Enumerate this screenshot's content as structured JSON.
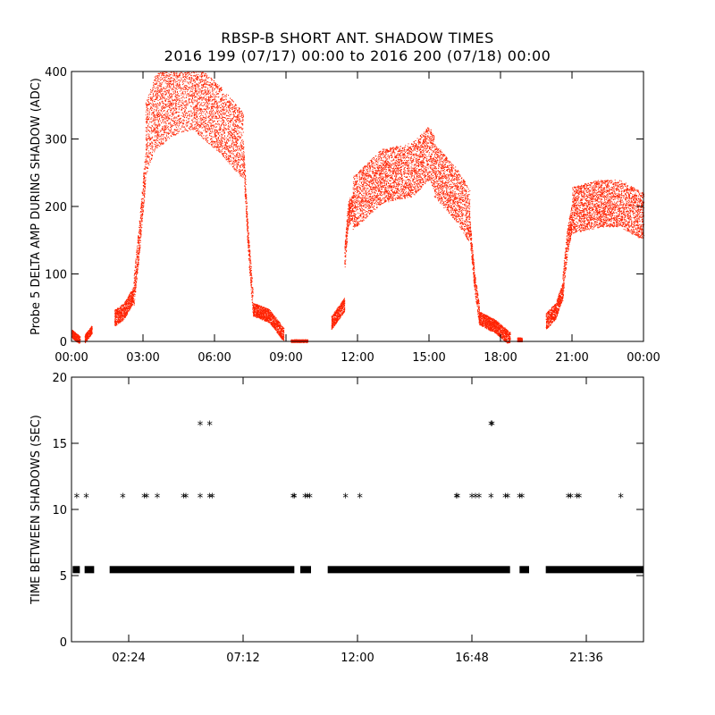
{
  "figure": {
    "title_line1": "RBSP-B SHORT ANT. SHADOW TIMES",
    "title_line2": "2016 199 (07/17) 00:00 to 2016 200 (07/18) 00:00"
  },
  "colors": {
    "top_points": "#ff2200",
    "bottom_points": "#000000",
    "axes": "#000000"
  },
  "chart_data": [
    {
      "type": "scatter",
      "ylabel": "Probe 5 DELTA AMP DURING SHADOW (ADC)",
      "xlim": [
        0,
        24
      ],
      "ylim": [
        0,
        400
      ],
      "x_units": "hours since 2016-07-17 00:00",
      "x_ticks": [
        0,
        3,
        6,
        9,
        12,
        15,
        18,
        21,
        24
      ],
      "x_tick_labels": [
        "00:00",
        "03:00",
        "06:00",
        "09:00",
        "12:00",
        "15:00",
        "18:00",
        "21:00",
        "00:00"
      ],
      "y_ticks": [
        0,
        100,
        200,
        300,
        400
      ],
      "y_tick_labels": [
        "0",
        "100",
        "200",
        "300",
        "400"
      ],
      "segments": [
        {
          "x0": 0.0,
          "x1": 0.35,
          "profile": [
            [
              0.0,
              12
            ],
            [
              0.2,
              6
            ],
            [
              0.35,
              2
            ]
          ],
          "spread": 6
        },
        {
          "x0": 0.55,
          "x1": 0.85,
          "profile": [
            [
              0.55,
              4
            ],
            [
              0.85,
              18
            ]
          ],
          "spread": 6
        },
        {
          "x0": 1.8,
          "x1": 2.6,
          "profile": [
            [
              1.8,
              35
            ],
            [
              2.2,
              45
            ],
            [
              2.6,
              70
            ]
          ],
          "spread": 12
        },
        {
          "x0": 2.6,
          "x1": 3.1,
          "profile": [
            [
              2.6,
              70
            ],
            [
              2.8,
              140
            ],
            [
              3.1,
              260
            ]
          ],
          "spread": 25
        },
        {
          "x0": 3.1,
          "x1": 5.2,
          "profile": [
            [
              3.1,
              300
            ],
            [
              3.5,
              340
            ],
            [
              4.5,
              365
            ],
            [
              5.2,
              370
            ]
          ],
          "spread": 55
        },
        {
          "x0": 5.2,
          "x1": 7.2,
          "profile": [
            [
              5.2,
              360
            ],
            [
              6.2,
              330
            ],
            [
              7.2,
              290
            ]
          ],
          "spread": 50
        },
        {
          "x0": 7.2,
          "x1": 7.6,
          "profile": [
            [
              7.2,
              280
            ],
            [
              7.4,
              150
            ],
            [
              7.6,
              60
            ]
          ],
          "spread": 20
        },
        {
          "x0": 7.6,
          "x1": 8.9,
          "profile": [
            [
              7.6,
              48
            ],
            [
              8.3,
              38
            ],
            [
              8.9,
              10
            ]
          ],
          "spread": 10
        },
        {
          "x0": 9.2,
          "x1": 9.9,
          "profile": [
            [
              9.2,
              1
            ],
            [
              9.9,
              1
            ]
          ],
          "spread": 2
        },
        {
          "x0": 10.9,
          "x1": 11.45,
          "profile": [
            [
              10.9,
              28
            ],
            [
              11.45,
              55
            ]
          ],
          "spread": 10
        },
        {
          "x0": 11.45,
          "x1": 11.8,
          "profile": [
            [
              11.45,
              120
            ],
            [
              11.6,
              190
            ],
            [
              11.8,
              200
            ]
          ],
          "spread": 20
        },
        {
          "x0": 11.8,
          "x1": 15.2,
          "profile": [
            [
              11.8,
              205
            ],
            [
              13.0,
              245
            ],
            [
              14.3,
              255
            ],
            [
              15.0,
              280
            ],
            [
              15.2,
              265
            ]
          ],
          "spread": 40
        },
        {
          "x0": 15.2,
          "x1": 16.7,
          "profile": [
            [
              15.2,
              255
            ],
            [
              16.2,
              215
            ],
            [
              16.7,
              185
            ]
          ],
          "spread": 40
        },
        {
          "x0": 16.7,
          "x1": 17.1,
          "profile": [
            [
              16.7,
              170
            ],
            [
              16.9,
              90
            ],
            [
              17.1,
              40
            ]
          ],
          "spread": 15
        },
        {
          "x0": 17.1,
          "x1": 18.4,
          "profile": [
            [
              17.1,
              35
            ],
            [
              17.8,
              22
            ],
            [
              18.4,
              4
            ]
          ],
          "spread": 10
        },
        {
          "x0": 18.7,
          "x1": 18.9,
          "profile": [
            [
              18.7,
              3
            ],
            [
              18.9,
              3
            ]
          ],
          "spread": 3
        },
        {
          "x0": 19.9,
          "x1": 20.6,
          "profile": [
            [
              19.9,
              30
            ],
            [
              20.3,
              45
            ],
            [
              20.6,
              75
            ]
          ],
          "spread": 12
        },
        {
          "x0": 20.6,
          "x1": 21.0,
          "profile": [
            [
              20.6,
              80
            ],
            [
              20.8,
              150
            ],
            [
              21.0,
              185
            ]
          ],
          "spread": 20
        },
        {
          "x0": 21.0,
          "x1": 24.0,
          "profile": [
            [
              21.0,
              195
            ],
            [
              22.2,
              205
            ],
            [
              23.0,
              205
            ],
            [
              24.0,
              185
            ]
          ],
          "spread": 35
        }
      ]
    },
    {
      "type": "scatter",
      "ylabel": "TIME BETWEEN SHADOWS (SEC)",
      "xlim": [
        0,
        24
      ],
      "ylim": [
        0,
        20
      ],
      "x_units": "hours since 2016-07-17 00:00",
      "x_ticks": [
        2.4,
        7.2,
        12.0,
        16.8,
        21.6
      ],
      "x_tick_labels": [
        "02:24",
        "07:12",
        "12:00",
        "16:48",
        "21:36"
      ],
      "y_ticks": [
        0,
        5,
        10,
        15,
        20
      ],
      "y_tick_labels": [
        "0",
        "5",
        "10",
        "15",
        "20"
      ],
      "baseline": {
        "value": 5.45,
        "ranges": [
          [
            0.05,
            0.35
          ],
          [
            0.55,
            0.95
          ],
          [
            1.6,
            9.35
          ],
          [
            9.6,
            10.05
          ],
          [
            10.75,
            18.4
          ],
          [
            18.8,
            19.2
          ],
          [
            19.9,
            24.0
          ]
        ]
      },
      "points": [
        {
          "x": 0.22,
          "y": 10.9
        },
        {
          "x": 0.62,
          "y": 10.9
        },
        {
          "x": 2.15,
          "y": 10.9
        },
        {
          "x": 3.05,
          "y": 10.9
        },
        {
          "x": 3.15,
          "y": 10.9
        },
        {
          "x": 3.6,
          "y": 10.9
        },
        {
          "x": 4.7,
          "y": 10.9
        },
        {
          "x": 4.8,
          "y": 10.9
        },
        {
          "x": 5.4,
          "y": 10.9
        },
        {
          "x": 5.8,
          "y": 10.9
        },
        {
          "x": 5.9,
          "y": 10.9
        },
        {
          "x": 5.4,
          "y": 16.4
        },
        {
          "x": 5.8,
          "y": 16.4
        },
        {
          "x": 9.3,
          "y": 10.9
        },
        {
          "x": 9.35,
          "y": 10.9
        },
        {
          "x": 9.8,
          "y": 10.9
        },
        {
          "x": 9.9,
          "y": 10.9
        },
        {
          "x": 10.0,
          "y": 10.9
        },
        {
          "x": 11.5,
          "y": 10.9
        },
        {
          "x": 12.1,
          "y": 10.9
        },
        {
          "x": 16.15,
          "y": 10.9
        },
        {
          "x": 16.2,
          "y": 10.9
        },
        {
          "x": 16.8,
          "y": 10.9
        },
        {
          "x": 16.95,
          "y": 10.9
        },
        {
          "x": 17.1,
          "y": 10.9
        },
        {
          "x": 17.6,
          "y": 16.4
        },
        {
          "x": 17.65,
          "y": 16.4
        },
        {
          "x": 17.6,
          "y": 10.9
        },
        {
          "x": 18.2,
          "y": 10.9
        },
        {
          "x": 18.3,
          "y": 10.9
        },
        {
          "x": 18.8,
          "y": 10.9
        },
        {
          "x": 18.9,
          "y": 10.9
        },
        {
          "x": 20.85,
          "y": 10.9
        },
        {
          "x": 20.95,
          "y": 10.9
        },
        {
          "x": 21.2,
          "y": 10.9
        },
        {
          "x": 21.3,
          "y": 10.9
        },
        {
          "x": 23.05,
          "y": 10.9
        }
      ]
    }
  ]
}
